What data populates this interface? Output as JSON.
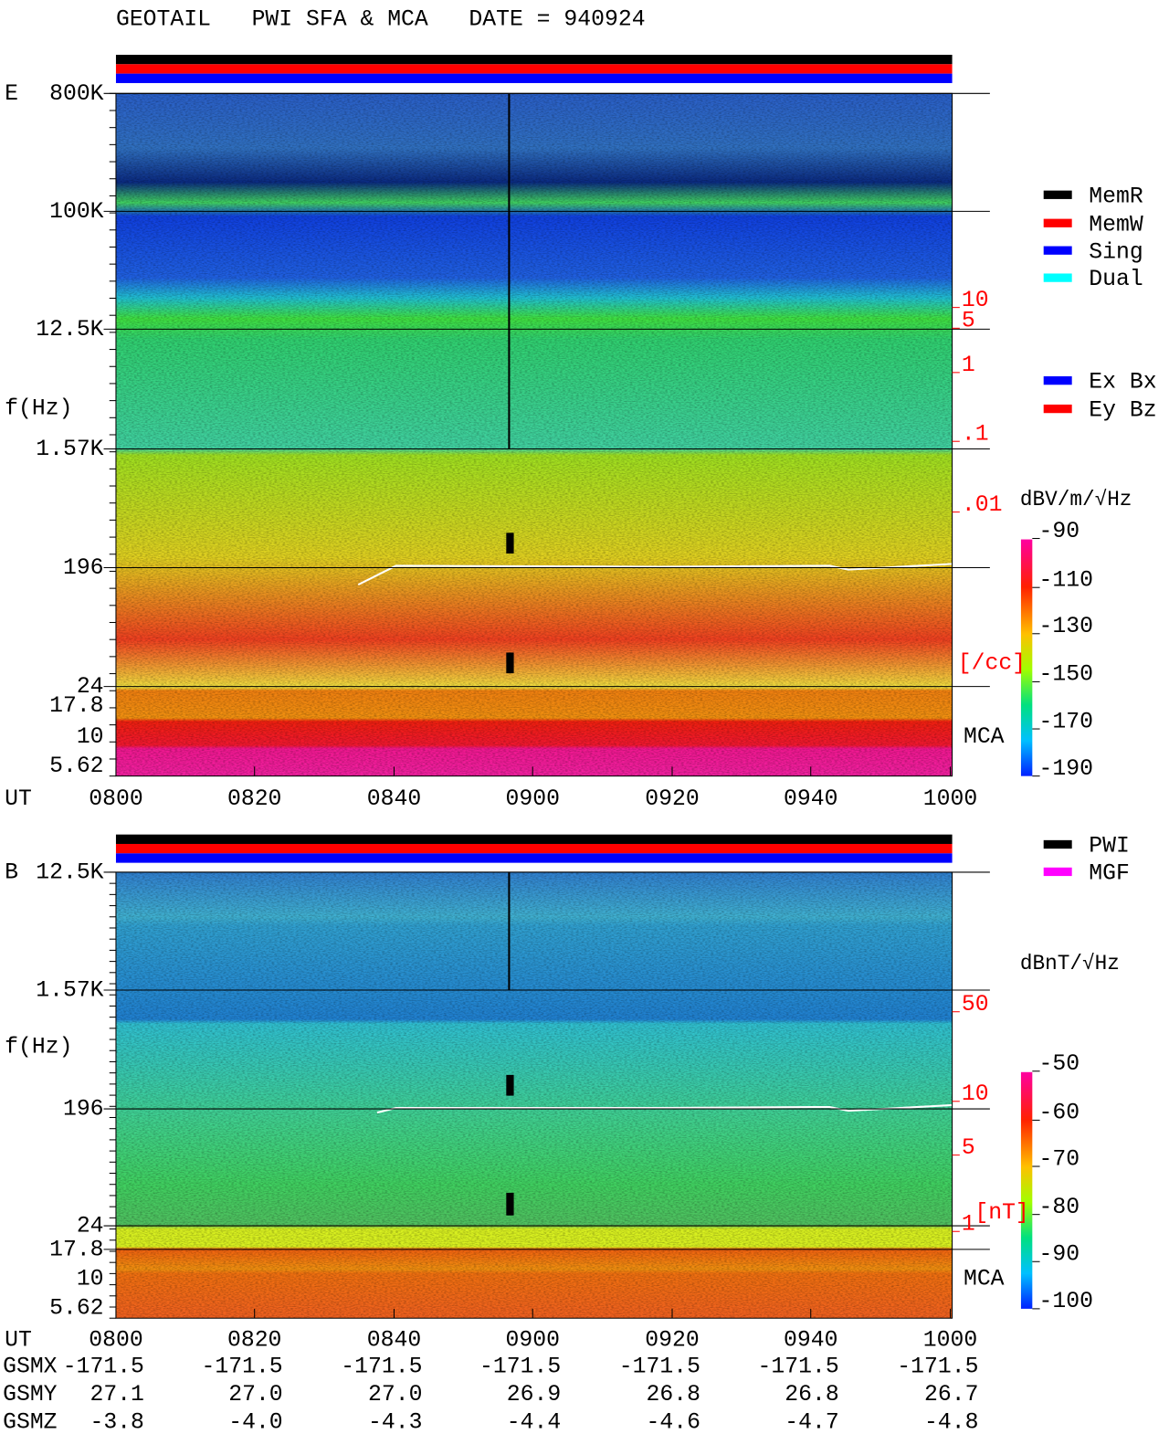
{
  "header": {
    "title": "GEOTAIL   PWI SFA & MCA   DATE = 940924"
  },
  "time_axis": {
    "label": "UT",
    "ticks": [
      "0800",
      "0820",
      "0840",
      "0900",
      "0920",
      "0940",
      "1000"
    ]
  },
  "panels": [
    {
      "label": "E",
      "y_label": "f(Hz)",
      "y_ticks": [
        "800K",
        "100K",
        "12.5K",
        "1.57K",
        "196",
        "24",
        "17.8",
        "10",
        "5.62"
      ],
      "right_scale": [
        "10",
        "5",
        "1",
        ".1",
        ".01"
      ],
      "right_unit": "[/cc]",
      "mca_label": "MCA",
      "legend": [
        {
          "name": "MemR",
          "color": "#000000"
        },
        {
          "name": "MemW",
          "color": "#ff0000"
        },
        {
          "name": "Sing",
          "color": "#0000ff"
        },
        {
          "name": "Dual",
          "color": "#00ffff"
        },
        {
          "name": "Ex Bx",
          "color": "#0000ff"
        },
        {
          "name": "Ey Bz",
          "color": "#ff0000"
        }
      ],
      "colorbar": {
        "unit": "dBV/m/√Hz",
        "ticks": [
          "-90",
          "-110",
          "-130",
          "-150",
          "-170",
          "-190"
        ]
      }
    },
    {
      "label": "B",
      "y_label": "f(Hz)",
      "y_ticks": [
        "12.5K",
        "1.57K",
        "196",
        "24",
        "17.8",
        "10",
        "5.62"
      ],
      "right_scale": [
        "50",
        "10",
        "5",
        "1"
      ],
      "right_unit": "[nT]",
      "mca_label": "MCA",
      "legend": [
        {
          "name": "PWI",
          "color": "#000000"
        },
        {
          "name": "MGF",
          "color": "#ff00ff"
        }
      ],
      "colorbar": {
        "unit": "dBnT/√Hz",
        "ticks": [
          "-50",
          "-60",
          "-70",
          "-80",
          "-90",
          "-100"
        ]
      }
    }
  ],
  "orbit": {
    "rows": [
      {
        "name": "GSMX",
        "values": [
          "-171.5",
          "-171.5",
          "-171.5",
          "-171.5",
          "-171.5",
          "-171.5",
          "-171.5"
        ]
      },
      {
        "name": "GSMY",
        "values": [
          "27.1",
          "27.0",
          "27.0",
          "26.9",
          "26.8",
          "26.8",
          "26.7"
        ]
      },
      {
        "name": "GSMZ",
        "values": [
          "-3.8",
          "-4.0",
          "-4.3",
          "-4.4",
          "-4.6",
          "-4.7",
          "-4.8"
        ]
      }
    ]
  }
}
